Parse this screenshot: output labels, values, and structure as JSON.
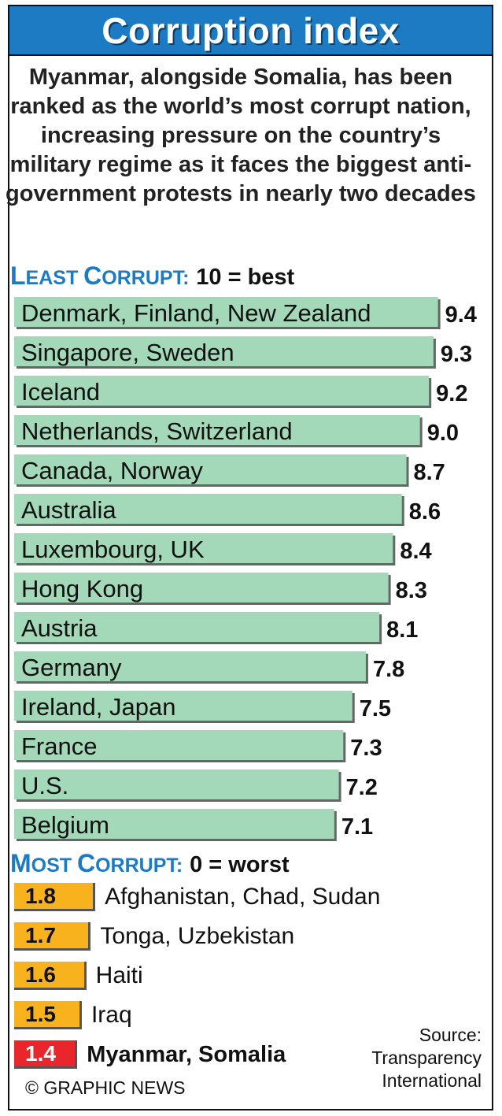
{
  "title": "Corruption index",
  "intro": "Myanmar, alongside Somalia, has been ranked as the world’s most corrupt nation, increasing pressure on the country’s military regime as it faces the biggest anti-government protests in nearly two decades",
  "least_heading": {
    "l1": "L",
    "r1": "EAST ",
    "l2": "C",
    "r2": "ORRUPT:",
    "note": "10 = best"
  },
  "most_heading": {
    "l1": "M",
    "r1": "OST ",
    "l2": "C",
    "r2": "ORRUPT:",
    "note": "0 = worst"
  },
  "credit": "© GRAPHIC NEWS",
  "source": "Source: Transparency International",
  "colors": {
    "title_bar": "#1d7bc4",
    "least_bar": "#a3d9b8",
    "worst_bar": "#f7b21e",
    "worst_last": "#e8262b"
  },
  "chart_data": [
    {
      "type": "bar",
      "orientation": "horizontal",
      "title": "LEAST CORRUPT: 10 = best",
      "categories": [
        "Denmark, Finland, New Zealand",
        "Singapore, Sweden",
        "Iceland",
        "Netherlands, Switzerland",
        "Canada, Norway",
        "Australia",
        "Luxembourg, UK",
        "Hong Kong",
        "Austria",
        "Germany",
        "Ireland, Japan",
        "France",
        "U.S.",
        "Belgium"
      ],
      "values": [
        9.4,
        9.3,
        9.2,
        9.0,
        8.7,
        8.6,
        8.4,
        8.3,
        8.1,
        7.8,
        7.5,
        7.3,
        7.2,
        7.1
      ],
      "value_labels": [
        "9.4",
        "9.3",
        "9.2",
        "9.0",
        "8.7",
        "8.6",
        "8.4",
        "8.3",
        "8.1",
        "7.8",
        "7.5",
        "7.3",
        "7.2",
        "7.1"
      ],
      "xlim": [
        0,
        10
      ]
    },
    {
      "type": "bar",
      "orientation": "horizontal",
      "title": "MOST CORRUPT: 0 = worst",
      "categories": [
        "Afghanistan, Chad, Sudan",
        "Tonga, Uzbekistan",
        "Haiti",
        "Iraq",
        "Myanmar, Somalia"
      ],
      "values": [
        1.8,
        1.7,
        1.6,
        1.5,
        1.4
      ],
      "value_labels": [
        "1.8",
        "1.7",
        "1.6",
        "1.5",
        "1.4"
      ],
      "xlim": [
        0,
        10
      ]
    }
  ]
}
